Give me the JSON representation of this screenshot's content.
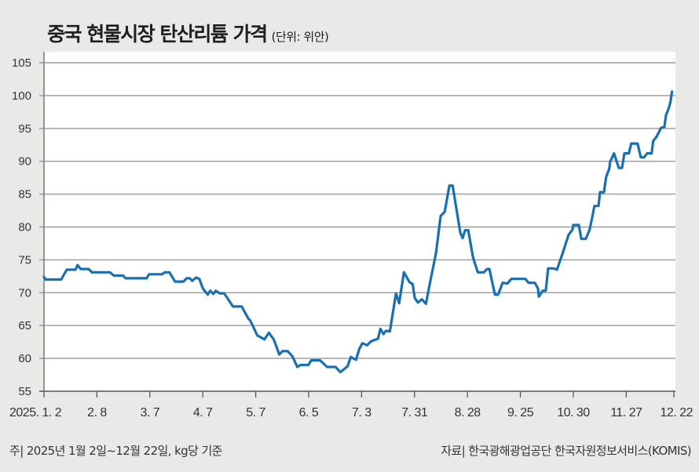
{
  "title": "중국 현물시장 탄산리튬 가격",
  "unit": "(단위: 위안)",
  "note": "주| 2025년 1월 2일~12월 22일, kg당 기준",
  "source": "자료| 한국광해광업공단 한국자원정보서비스(KOMIS)",
  "colors": {
    "line": "#1a6fb0",
    "grid": "#9a9a9a",
    "plot_bg": "#ffffff"
  },
  "chart_data": {
    "type": "line",
    "title": "중국 현물시장 탄산리튬 가격",
    "ylabel": "위안/kg",
    "ylim": [
      55,
      105
    ],
    "yticks": [
      55,
      60,
      65,
      70,
      75,
      80,
      85,
      90,
      95,
      100,
      105
    ],
    "xlim": [
      0,
      238
    ],
    "xticks": [
      {
        "x": 0,
        "label": "2025. 1. 2"
      },
      {
        "x": 20,
        "label": "2. 8"
      },
      {
        "x": 40,
        "label": "3. 7"
      },
      {
        "x": 60,
        "label": "4. 7"
      },
      {
        "x": 80,
        "label": "5. 7"
      },
      {
        "x": 100,
        "label": "6. 5"
      },
      {
        "x": 120,
        "label": "7. 3"
      },
      {
        "x": 140,
        "label": "7. 31"
      },
      {
        "x": 160,
        "label": "8. 28"
      },
      {
        "x": 180,
        "label": "9. 25"
      },
      {
        "x": 200,
        "label": "10. 30"
      },
      {
        "x": 220,
        "label": "11. 27"
      },
      {
        "x": 238,
        "label": "12. 22"
      }
    ],
    "grid": true,
    "series": [
      {
        "name": "탄산리튬 가격",
        "points": [
          [
            0,
            72.4
          ],
          [
            0.6,
            72
          ],
          [
            6.5,
            72
          ],
          [
            8.6,
            73.5
          ],
          [
            11.9,
            73.5
          ],
          [
            12.7,
            74.2
          ],
          [
            13.9,
            73.6
          ],
          [
            16.9,
            73.6
          ],
          [
            18.1,
            73.1
          ],
          [
            24.9,
            73.1
          ],
          [
            26.4,
            72.6
          ],
          [
            29.9,
            72.6
          ],
          [
            30.8,
            72.2
          ],
          [
            38.8,
            72.2
          ],
          [
            39.7,
            72.8
          ],
          [
            44.7,
            72.8
          ],
          [
            45.6,
            73.1
          ],
          [
            47.4,
            73.1
          ],
          [
            49.5,
            71.7
          ],
          [
            52.7,
            71.7
          ],
          [
            53.9,
            72.2
          ],
          [
            55.1,
            72.2
          ],
          [
            56,
            71.8
          ],
          [
            57.5,
            72.3
          ],
          [
            58.7,
            72.1
          ],
          [
            60.1,
            70.6
          ],
          [
            61.9,
            69.7
          ],
          [
            62.8,
            70.3
          ],
          [
            64,
            69.8
          ],
          [
            64.9,
            70.3
          ],
          [
            66.4,
            69.9
          ],
          [
            68.1,
            69.9
          ],
          [
            71.4,
            67.9
          ],
          [
            74.7,
            67.9
          ],
          [
            77.3,
            66
          ],
          [
            77.9,
            65.8
          ],
          [
            80.6,
            63.5
          ],
          [
            83.3,
            62.9
          ],
          [
            85,
            63.9
          ],
          [
            86.8,
            62.9
          ],
          [
            88.9,
            60.6
          ],
          [
            90.1,
            61.1
          ],
          [
            92.1,
            61.1
          ],
          [
            93.9,
            60.3
          ],
          [
            95.7,
            58.7
          ],
          [
            96.9,
            59
          ],
          [
            99.9,
            59
          ],
          [
            101,
            59.7
          ],
          [
            104.3,
            59.7
          ],
          [
            107,
            58.7
          ],
          [
            110.2,
            58.7
          ],
          [
            112,
            57.9
          ],
          [
            114.7,
            58.8
          ],
          [
            115.9,
            60.2
          ],
          [
            117.9,
            59.8
          ],
          [
            119.1,
            61.4
          ],
          [
            120.3,
            62.3
          ],
          [
            122.1,
            62
          ],
          [
            123.6,
            62.6
          ],
          [
            126.2,
            63
          ],
          [
            127.1,
            64.5
          ],
          [
            128.3,
            63.7
          ],
          [
            129.2,
            64.2
          ],
          [
            130.7,
            64.1
          ],
          [
            133,
            69.9
          ],
          [
            134.2,
            68.4
          ],
          [
            136,
            73.1
          ],
          [
            138.1,
            71.6
          ],
          [
            139.3,
            71.3
          ],
          [
            140.1,
            69.2
          ],
          [
            141.3,
            68.5
          ],
          [
            142.8,
            69
          ],
          [
            144.3,
            68.3
          ],
          [
            145.8,
            71.4
          ],
          [
            148.1,
            76
          ],
          [
            149.9,
            81.7
          ],
          [
            151.4,
            82.3
          ],
          [
            153.2,
            86.3
          ],
          [
            154.4,
            86.3
          ],
          [
            157.3,
            79.1
          ],
          [
            158.2,
            78.3
          ],
          [
            159.1,
            79.5
          ],
          [
            160.3,
            79.5
          ],
          [
            162.1,
            75.4
          ],
          [
            163.9,
            73.1
          ],
          [
            166.2,
            73.1
          ],
          [
            167.4,
            73.6
          ],
          [
            168.3,
            73.6
          ],
          [
            170.4,
            69.7
          ],
          [
            171.6,
            69.7
          ],
          [
            173.3,
            71.5
          ],
          [
            175.1,
            71.4
          ],
          [
            176.6,
            72.1
          ],
          [
            181.9,
            72.1
          ],
          [
            183.1,
            71.5
          ],
          [
            185.5,
            71.5
          ],
          [
            186.7,
            70.6
          ],
          [
            187,
            69.4
          ],
          [
            188.4,
            70.3
          ],
          [
            189.6,
            70.3
          ],
          [
            190.5,
            73.7
          ],
          [
            192.6,
            73.7
          ],
          [
            193.8,
            73.5
          ],
          [
            195.9,
            75.9
          ],
          [
            198.2,
            78.8
          ],
          [
            199.7,
            79.6
          ],
          [
            200,
            80.3
          ],
          [
            202.1,
            80.3
          ],
          [
            203,
            78.2
          ],
          [
            204.7,
            78.2
          ],
          [
            206.2,
            79.6
          ],
          [
            208,
            83.2
          ],
          [
            209.5,
            83.2
          ],
          [
            210.1,
            85.3
          ],
          [
            211.6,
            85.3
          ],
          [
            212.4,
            87.6
          ],
          [
            213.6,
            88.9
          ],
          [
            213.9,
            89.9
          ],
          [
            215.4,
            91.2
          ],
          [
            217.2,
            89
          ],
          [
            218.4,
            89
          ],
          [
            219.3,
            91.2
          ],
          [
            221,
            91.2
          ],
          [
            221.9,
            92.7
          ],
          [
            224.3,
            92.7
          ],
          [
            225.5,
            90.6
          ],
          [
            226.7,
            90.6
          ],
          [
            227.9,
            91.2
          ],
          [
            229.6,
            91.2
          ],
          [
            230.2,
            93.1
          ],
          [
            231.4,
            93.7
          ],
          [
            233.2,
            95.1
          ],
          [
            234.4,
            95.2
          ],
          [
            235,
            97
          ],
          [
            236.1,
            98.1
          ],
          [
            236.7,
            99
          ],
          [
            237.3,
            100.6
          ]
        ]
      }
    ]
  }
}
